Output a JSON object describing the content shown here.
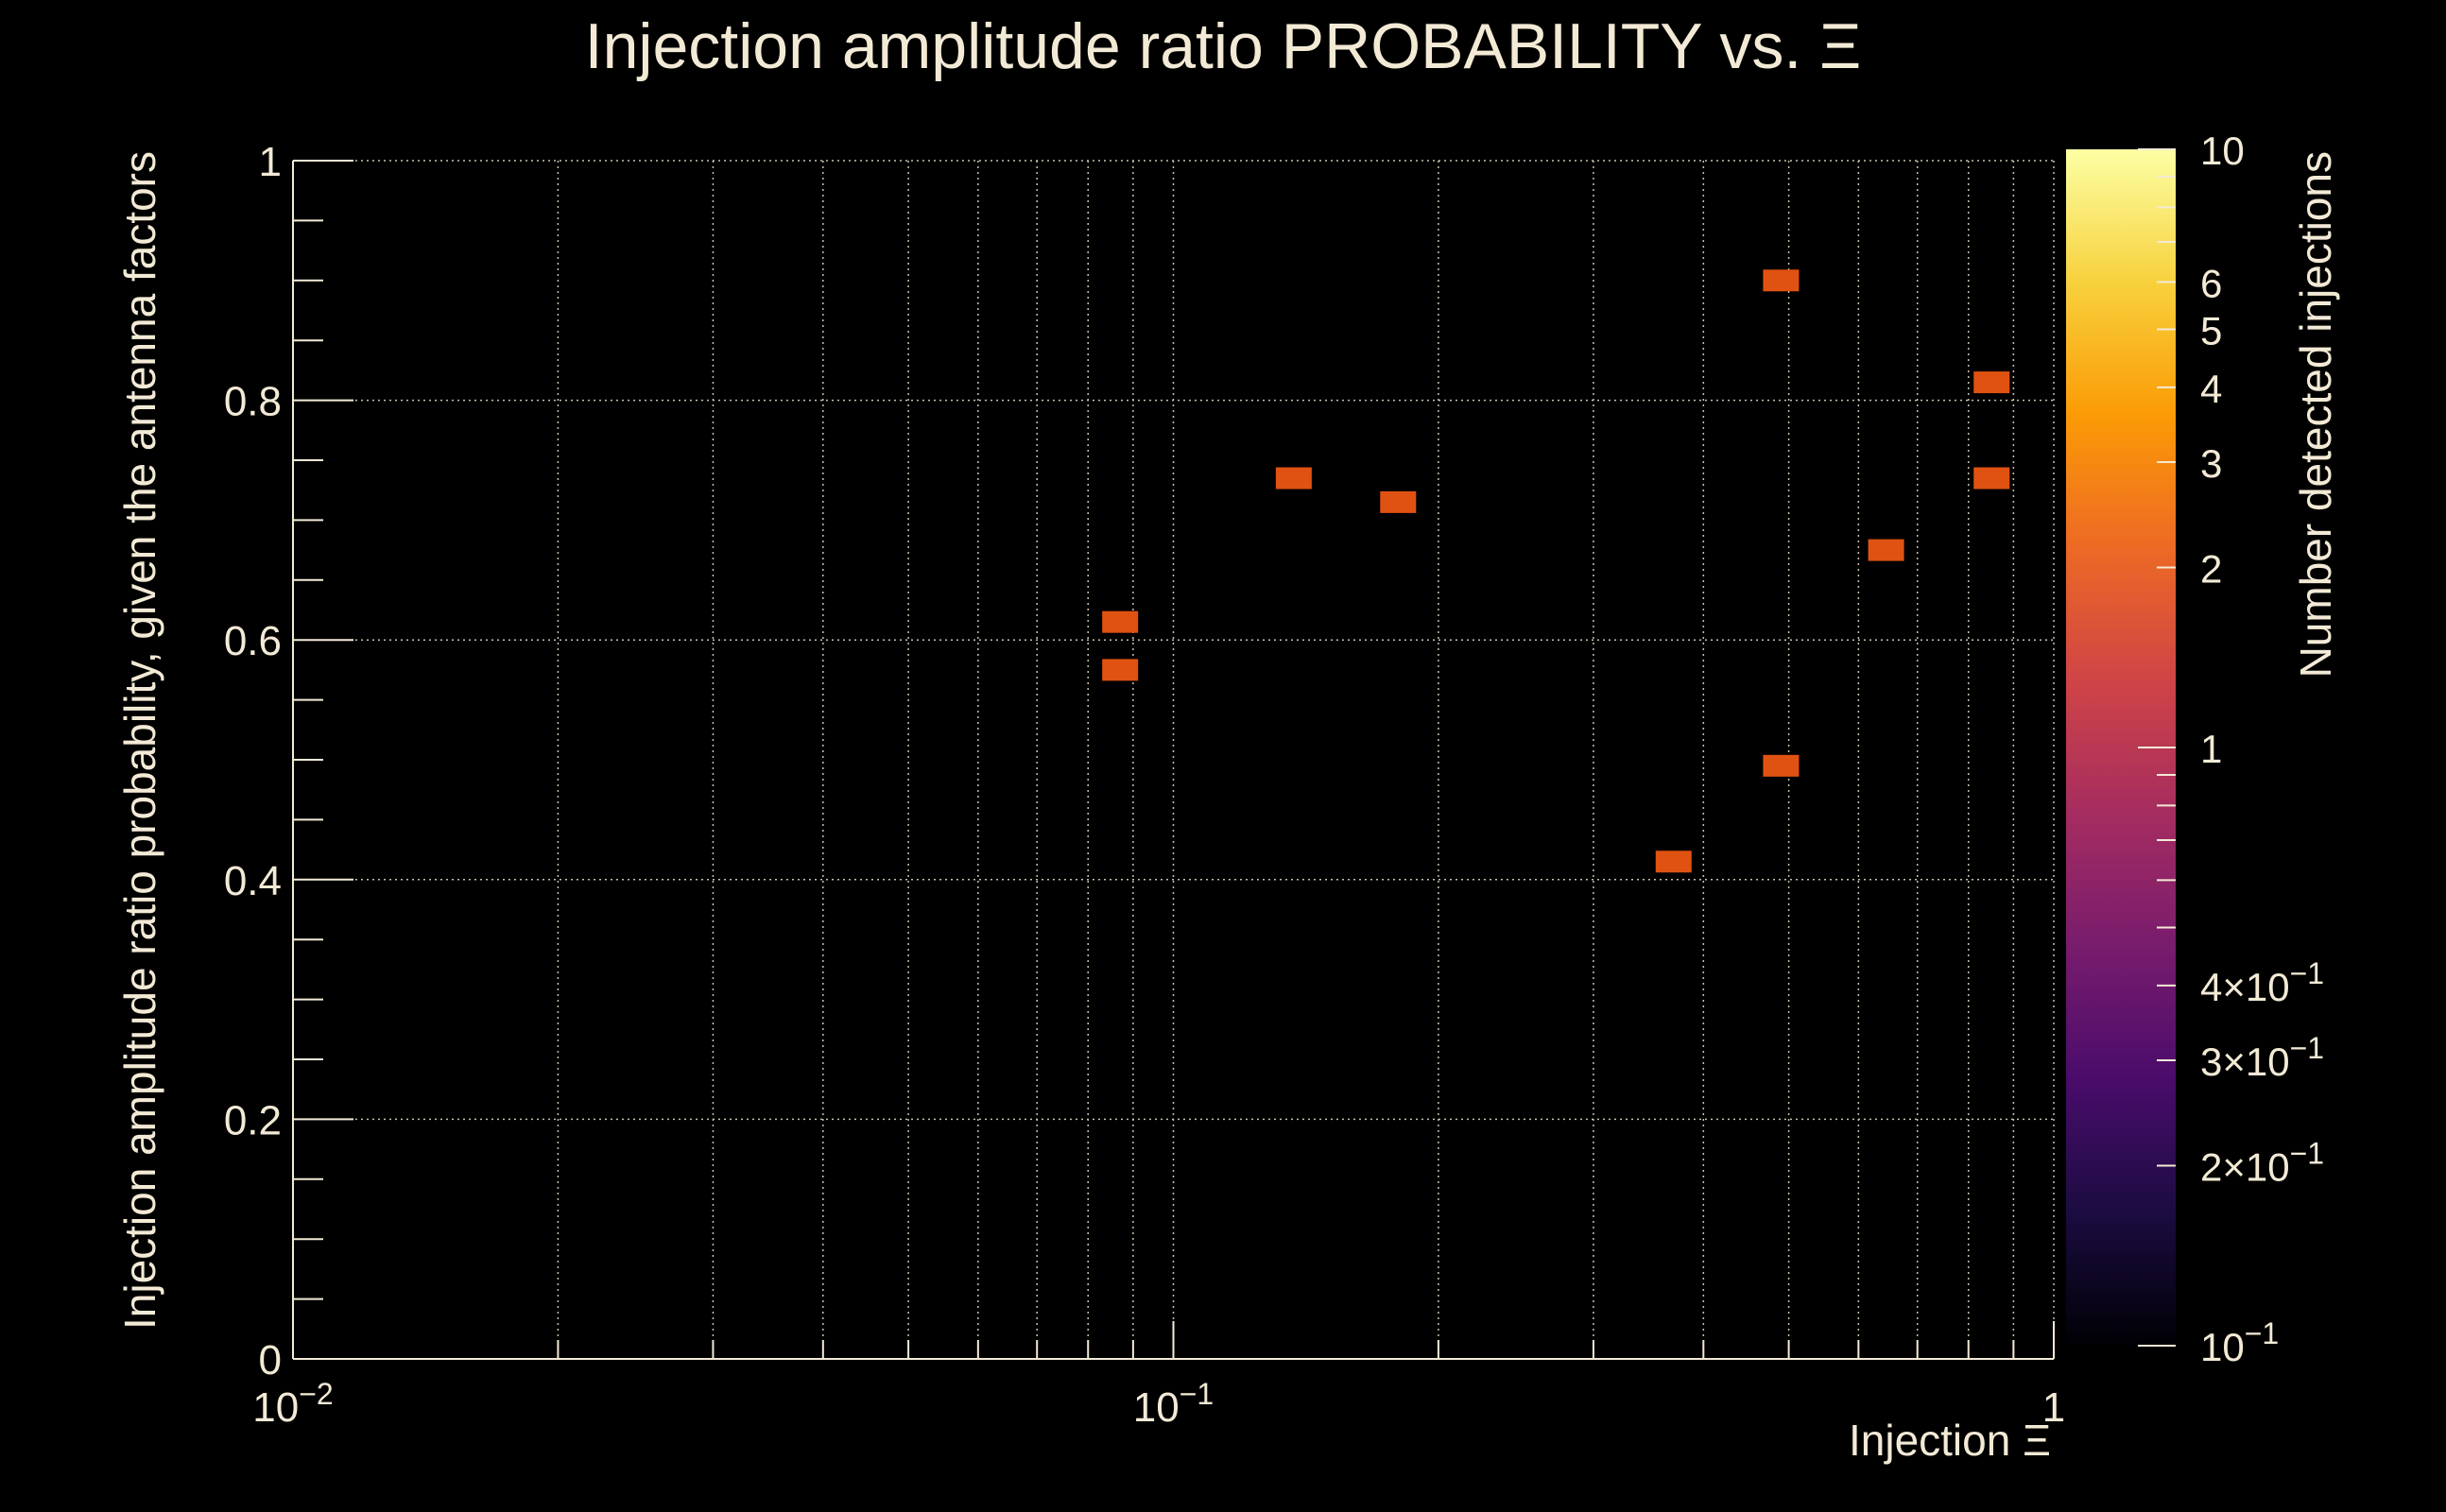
{
  "chart_data": {
    "type": "heatmap",
    "title": "Injection amplitude ratio PROBABILITY vs.  Ξ",
    "xlabel": "Injection Ξ",
    "ylabel": "Injection amplitude ratio probability, given the antenna factors",
    "xscale": "log",
    "xlim": [
      0.01,
      1
    ],
    "ylim": [
      0,
      1
    ],
    "grid": true,
    "x_major_ticks": [
      {
        "value": 0.01,
        "base": "10",
        "exp": "−2"
      },
      {
        "value": 0.1,
        "base": "10",
        "exp": "−1"
      },
      {
        "value": 1,
        "base": "1",
        "exp": ""
      }
    ],
    "y_ticks": [
      {
        "value": 0,
        "label": "0"
      },
      {
        "value": 0.2,
        "label": "0.2"
      },
      {
        "value": 0.4,
        "label": "0.4"
      },
      {
        "value": 0.6,
        "label": "0.6"
      },
      {
        "value": 0.8,
        "label": "0.8"
      },
      {
        "value": 1,
        "label": "1"
      }
    ],
    "colorbar": {
      "label": "Number detected injections",
      "scale": "log",
      "range": [
        0.1,
        10
      ],
      "ticks": [
        {
          "value": 10,
          "base": "10",
          "exp": ""
        },
        {
          "value": 6,
          "base": "6",
          "exp": ""
        },
        {
          "value": 5,
          "base": "5",
          "exp": ""
        },
        {
          "value": 4,
          "base": "4",
          "exp": ""
        },
        {
          "value": 3,
          "base": "3",
          "exp": ""
        },
        {
          "value": 2,
          "base": "2",
          "exp": ""
        },
        {
          "value": 1,
          "base": "1",
          "exp": ""
        },
        {
          "value": 0.4,
          "base": "4×10",
          "exp": "−1"
        },
        {
          "value": 0.3,
          "base": "3×10",
          "exp": "−1"
        },
        {
          "value": 0.2,
          "base": "2×10",
          "exp": "−1"
        },
        {
          "value": 0.1,
          "base": "10",
          "exp": "−1"
        }
      ],
      "colors": [
        "#000004",
        "#1b0c41",
        "#4a0c6b",
        "#781c6d",
        "#a52c60",
        "#cf4446",
        "#ed6925",
        "#fb9b06",
        "#f7d13d",
        "#fcffa4"
      ]
    },
    "cells": [
      {
        "x": 0.087,
        "y": 0.615,
        "count": 1
      },
      {
        "x": 0.087,
        "y": 0.575,
        "count": 1
      },
      {
        "x": 0.137,
        "y": 0.735,
        "count": 1
      },
      {
        "x": 0.18,
        "y": 0.715,
        "count": 1
      },
      {
        "x": 0.37,
        "y": 0.415,
        "count": 1
      },
      {
        "x": 0.49,
        "y": 0.9,
        "count": 1
      },
      {
        "x": 0.49,
        "y": 0.495,
        "count": 1
      },
      {
        "x": 0.645,
        "y": 0.675,
        "count": 1
      },
      {
        "x": 0.85,
        "y": 0.815,
        "count": 1
      },
      {
        "x": 0.85,
        "y": 0.735,
        "count": 1
      }
    ],
    "cell_color": "#e05212"
  }
}
